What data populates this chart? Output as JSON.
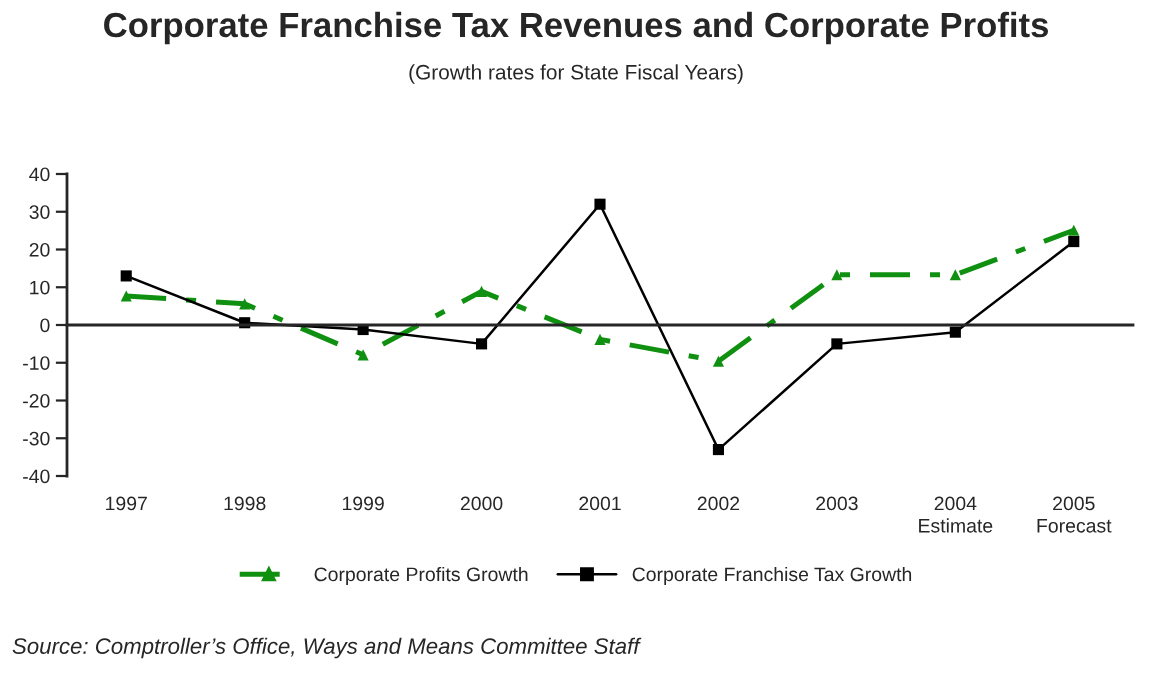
{
  "chart_data": {
    "type": "line",
    "title": "Corporate Franchise Tax Revenues and Corporate Profits",
    "subtitle": "(Growth rates for State Fiscal Years)",
    "categories": [
      "1997",
      "1998",
      "1999",
      "2000",
      "2001",
      "2002",
      "2003",
      "2004\nEstimate",
      "2005\nForecast"
    ],
    "series": [
      {
        "name": "Corporate Profits Growth",
        "color": "#109010",
        "marker": "triangle",
        "line_style": "dashdot",
        "values": [
          7.7,
          5.6,
          -7.9,
          8.9,
          -3.8,
          -9.6,
          13.3,
          13.3,
          25.1
        ]
      },
      {
        "name": "Corporate Franchise Tax Growth",
        "color": "#000000",
        "marker": "square",
        "line_style": "solid",
        "values": [
          13,
          0.6,
          -1.2,
          -5,
          32,
          -33,
          -5,
          -1.9,
          22.1
        ]
      }
    ],
    "ylim": [
      -40,
      40
    ],
    "yticks": [
      -40,
      -30,
      -20,
      -10,
      0,
      10,
      20,
      30,
      40
    ],
    "legend": "bottom",
    "annotations": [
      "Source: Comptroller’s Office, Ways and Means Committee Staff"
    ]
  }
}
